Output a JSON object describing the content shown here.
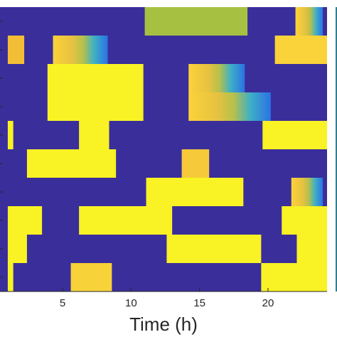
{
  "chart_data": {
    "type": "heatmap",
    "title": "",
    "xlabel": "Time (h)",
    "ylabel": "",
    "xlim": [
      1,
      24
    ],
    "x_ticks": [
      5,
      10,
      15,
      20
    ],
    "rows": 10,
    "background_color": "#3a2e9b",
    "colorbar_visible_edge": true,
    "blocks": [
      {
        "row": 0,
        "x_start": 11,
        "x_end": 18.5,
        "color": "#a6c142",
        "gradient": false
      },
      {
        "row": 0,
        "x_start": 22,
        "x_end": 24,
        "color": "#2fa9d6",
        "gradient": true
      },
      {
        "row": 1,
        "x_start": 1,
        "x_end": 2.2,
        "color": "#f4bd36",
        "gradient": false
      },
      {
        "row": 1,
        "x_start": 4.3,
        "x_end": 8.3,
        "color": "#f7c932",
        "gradient": true
      },
      {
        "row": 1,
        "x_start": 20.5,
        "x_end": 24.8,
        "color": "#fad23a",
        "gradient": false
      },
      {
        "row": 2,
        "x_start": 3.9,
        "x_end": 10.9,
        "color": "#f9f224",
        "gradient": false
      },
      {
        "row": 2,
        "x_start": 14.2,
        "x_end": 18.3,
        "color": "#f5c53a",
        "gradient": true
      },
      {
        "row": 3,
        "x_start": 3.9,
        "x_end": 10.9,
        "color": "#f9f224",
        "gradient": false
      },
      {
        "row": 3,
        "x_start": 14.2,
        "x_end": 20.2,
        "color": "#f0c83c",
        "gradient": true
      },
      {
        "row": 4,
        "x_start": 1,
        "x_end": 1.4,
        "color": "#f9f224",
        "gradient": false
      },
      {
        "row": 4,
        "x_start": 6.2,
        "x_end": 8.4,
        "color": "#f9f224",
        "gradient": false
      },
      {
        "row": 4,
        "x_start": 19.6,
        "x_end": 24.8,
        "color": "#f9f224",
        "gradient": false
      },
      {
        "row": 5,
        "x_start": 2.4,
        "x_end": 8.9,
        "color": "#f9f224",
        "gradient": false
      },
      {
        "row": 5,
        "x_start": 13.7,
        "x_end": 15.7,
        "color": "#f6c93a",
        "gradient": false
      },
      {
        "row": 6,
        "x_start": 11.1,
        "x_end": 18.2,
        "color": "#f9f224",
        "gradient": false
      },
      {
        "row": 6,
        "x_start": 21.7,
        "x_end": 24,
        "color": "#f2c43a",
        "gradient": true
      },
      {
        "row": 7,
        "x_start": 1,
        "x_end": 3.5,
        "color": "#f9f224",
        "gradient": false
      },
      {
        "row": 7,
        "x_start": 6.2,
        "x_end": 13,
        "color": "#f9f224",
        "gradient": false
      },
      {
        "row": 7,
        "x_start": 21,
        "x_end": 24.8,
        "color": "#f9f224",
        "gradient": false
      },
      {
        "row": 8,
        "x_start": 1,
        "x_end": 2.4,
        "color": "#f9f224",
        "gradient": false
      },
      {
        "row": 8,
        "x_start": 12.6,
        "x_end": 19.5,
        "color": "#f9f224",
        "gradient": false
      },
      {
        "row": 8,
        "x_start": 22.1,
        "x_end": 24.8,
        "color": "#f9f224",
        "gradient": false
      },
      {
        "row": 9,
        "x_start": 1,
        "x_end": 1.4,
        "color": "#f9f224",
        "gradient": false
      },
      {
        "row": 9,
        "x_start": 5.6,
        "x_end": 8.6,
        "color": "#f7d238",
        "gradient": false
      },
      {
        "row": 9,
        "x_start": 19.5,
        "x_end": 24.8,
        "color": "#f9f224",
        "gradient": false
      }
    ]
  }
}
